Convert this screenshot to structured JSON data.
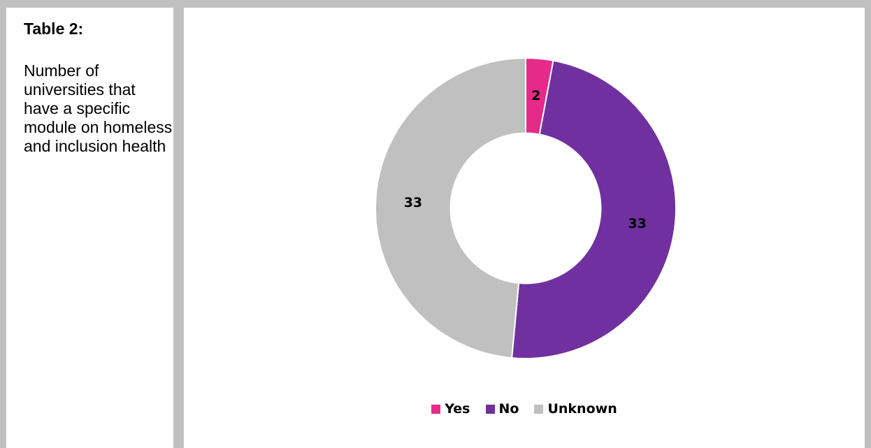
{
  "panel": {
    "title": "Table 2:",
    "description": "Number of universities that have a specific module on homeless and inclusion health"
  },
  "chart_data": {
    "type": "pie",
    "hole": 0.5,
    "categories": [
      "Yes",
      "No",
      "Unknown"
    ],
    "values": [
      2,
      33,
      33
    ],
    "colors": [
      "#e62a8a",
      "#7030a0",
      "#c0c0c0"
    ],
    "data_labels": [
      "2",
      "33",
      "33"
    ],
    "legend": "bottom",
    "title": ""
  }
}
